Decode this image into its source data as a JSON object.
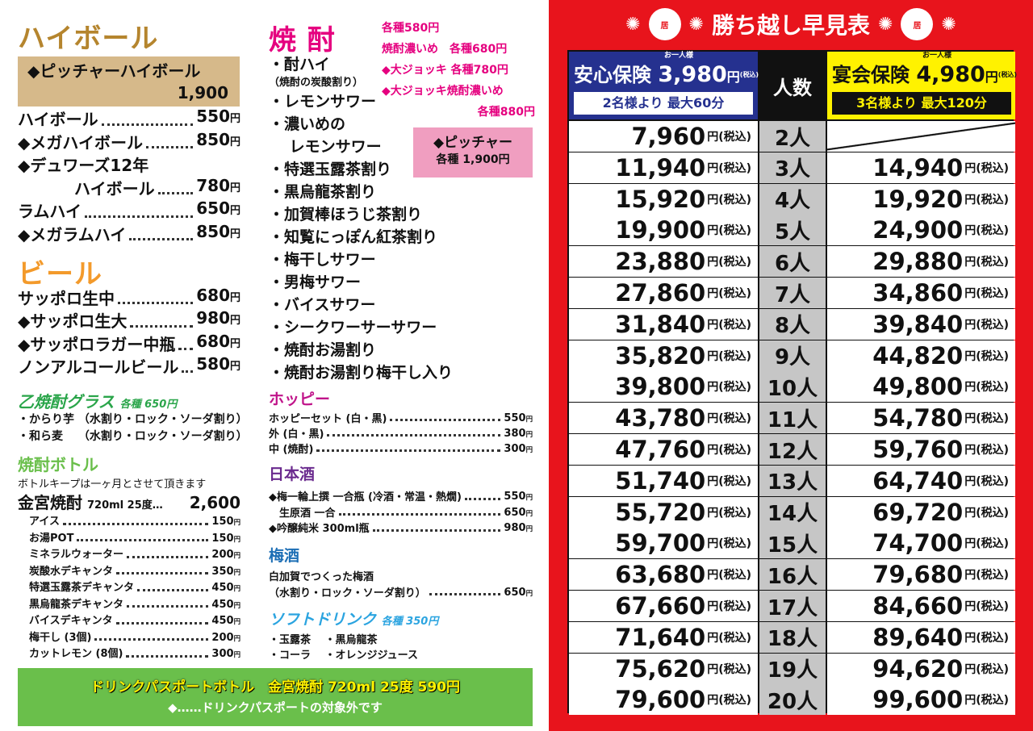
{
  "highball": {
    "title": "ハイボール",
    "pitcher": {
      "name": "◆ピッチャーハイボール",
      "price": "1,900"
    },
    "items": [
      {
        "name": "ハイボール",
        "price": "550"
      },
      {
        "name": "◆メガハイボール",
        "price": "850"
      },
      {
        "name": "◆デュワーズ12年",
        "price": ""
      },
      {
        "name": "ハイボール",
        "price": "780"
      },
      {
        "name": "ラムハイ",
        "price": "650"
      },
      {
        "name": "◆メガラムハイ",
        "price": "850"
      }
    ]
  },
  "beer": {
    "title": "ビール",
    "items": [
      {
        "name": "サッポロ生中",
        "price": "680"
      },
      {
        "name": "◆サッポロ生大",
        "price": "980"
      },
      {
        "name": "◆サッポロラガー中瓶",
        "price": "680"
      },
      {
        "name": "ノンアルコールビール",
        "price": "580"
      }
    ]
  },
  "otsu": {
    "title": "乙焼酎グラス",
    "price_note": "各種 650円",
    "items": [
      "・からり芋 （水割り・ロック・ソーダ割り）",
      "・和ら麦　 （水割り・ロック・ソーダ割り）"
    ]
  },
  "bottle": {
    "title": "焼酎ボトル",
    "note": "ボトルキープは一ヶ月とさせて頂きます",
    "main": {
      "name": "金宮焼酎",
      "spec": "720ml 25度…",
      "price": "2,600"
    },
    "items": [
      {
        "name": "アイス",
        "price": "150"
      },
      {
        "name": "お湯POT",
        "price": "150"
      },
      {
        "name": "ミネラルウォーター",
        "price": "200"
      },
      {
        "name": "炭酸水デキャンタ",
        "price": "350"
      },
      {
        "name": "特選玉露茶デキャンタ",
        "price": "450"
      },
      {
        "name": "黒烏龍茶デキャンタ",
        "price": "450"
      },
      {
        "name": "バイスデキャンタ",
        "price": "450"
      },
      {
        "name": "梅干し (3個)",
        "price": "200"
      },
      {
        "name": "カットレモン (8個)",
        "price": "300"
      }
    ]
  },
  "shochu": {
    "title": "焼 酎",
    "prices": [
      "各種580円",
      "焼酎濃いめ　各種680円",
      "◆大ジョッキ 各種780円",
      "◆大ジョッキ焼酎濃いめ",
      "各種880円"
    ],
    "pitcher": {
      "name": "◆ピッチャー",
      "price": "各種 1,900円"
    },
    "items": [
      "・酎ハイ",
      "（焼酎の炭酸割り）",
      "・レモンサワー",
      "・濃いめの",
      "　 レモンサワー",
      "・特選玉露茶割り",
      "・黒烏龍茶割り",
      "・加賀棒ほうじ茶割り",
      "・知覧にっぽん紅茶割り",
      "・梅干しサワー",
      "・男梅サワー",
      "・バイスサワー",
      "・シークワーサーサワー",
      "・焼酎お湯割り",
      "・焼酎お湯割り梅干し入り"
    ]
  },
  "hoppy": {
    "title": "ホッピー",
    "items": [
      {
        "name": "ホッピーセット (白・黒)",
        "price": "550"
      },
      {
        "name": "外 (白・黒)",
        "price": "380"
      },
      {
        "name": "中 (焼酎)",
        "price": "300"
      }
    ]
  },
  "sake": {
    "title": "日本酒",
    "items": [
      {
        "name": "◆梅一輪上撰 一合瓶 (冷酒・常温・熱燗)",
        "price": "550"
      },
      {
        "name": "　生原酒 一合",
        "price": "650"
      },
      {
        "name": "◆吟醸純米 300ml瓶",
        "price": "980"
      }
    ]
  },
  "umeshu": {
    "title": "梅酒",
    "items": [
      {
        "name": "白加賀でつくった梅酒",
        "price": ""
      },
      {
        "name": "（水割り・ロック・ソーダ割り）",
        "price": "650"
      }
    ]
  },
  "soft": {
    "title": "ソフトドリンク",
    "price_note": "各種 350円",
    "items": [
      "・玉露茶　 ・黒烏龍茶",
      "・コーラ　 ・オレンジジュース"
    ]
  },
  "passport": {
    "title": "ドリンクパスポートボトル",
    "detail": "金宮焼酎 720ml 25度 590円",
    "note": "◆……ドリンクパスポートの対象外です"
  },
  "table": {
    "title": "勝ち越し早見表",
    "logo_text": "居酒屋",
    "plan_a": {
      "name": "安心保険",
      "per": "お一人様",
      "price": "3,980",
      "unit": "円",
      "tax": "(税込)",
      "cond": "2名様より 最大60分"
    },
    "people_header": "人数",
    "plan_b": {
      "name": "宴会保険",
      "per": "お一人様",
      "price": "4,980",
      "unit": "円",
      "tax": "(税込)",
      "cond": "3名様より 最大120分"
    },
    "suffix": "円(税込)",
    "rows": [
      {
        "a": "7,960",
        "p": "2人",
        "b": ""
      },
      {
        "a": "11,940",
        "p": "3人",
        "b": "14,940"
      },
      {
        "a": "15,920",
        "p": "4人",
        "b": "19,920"
      },
      {
        "a": "19,900",
        "p": "5人",
        "b": "24,900"
      },
      {
        "a": "23,880",
        "p": "6人",
        "b": "29,880"
      },
      {
        "a": "27,860",
        "p": "7人",
        "b": "34,860"
      },
      {
        "a": "31,840",
        "p": "8人",
        "b": "39,840"
      },
      {
        "a": "35,820",
        "p": "9人",
        "b": "44,820"
      },
      {
        "a": "39,800",
        "p": "10人",
        "b": "49,800"
      },
      {
        "a": "43,780",
        "p": "11人",
        "b": "54,780"
      },
      {
        "a": "47,760",
        "p": "12人",
        "b": "59,760"
      },
      {
        "a": "51,740",
        "p": "13人",
        "b": "64,740"
      },
      {
        "a": "55,720",
        "p": "14人",
        "b": "69,720"
      },
      {
        "a": "59,700",
        "p": "15人",
        "b": "74,700"
      },
      {
        "a": "63,680",
        "p": "16人",
        "b": "79,680"
      },
      {
        "a": "67,660",
        "p": "17人",
        "b": "84,660"
      },
      {
        "a": "71,640",
        "p": "18人",
        "b": "89,640"
      },
      {
        "a": "75,620",
        "p": "19人",
        "b": "94,620"
      },
      {
        "a": "79,600",
        "p": "20人",
        "b": "99,600"
      }
    ]
  },
  "colors": {
    "red": "#e8141c",
    "blue": "#25318f",
    "yellow": "#fff200",
    "brown": "#b5852e",
    "green": "#6abf4b",
    "pink": "#e5007f"
  }
}
